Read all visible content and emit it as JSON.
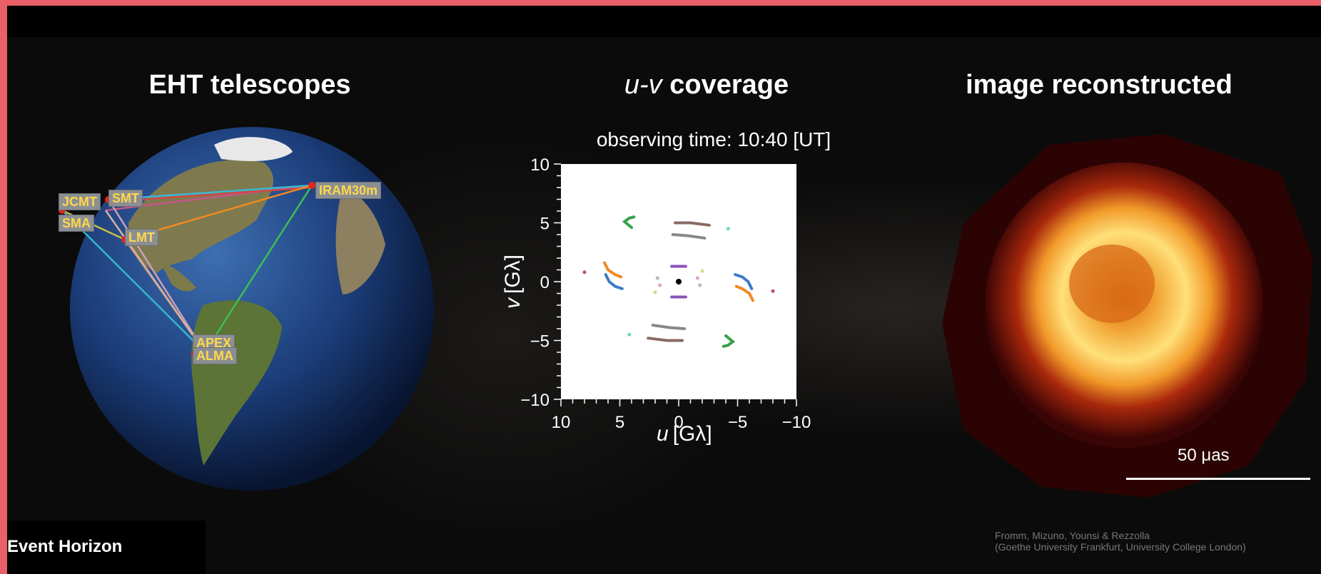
{
  "panels": {
    "telescopes_title": "EHT telescopes",
    "uv_title_italic": "u-v",
    "uv_title_rest": " coverage",
    "image_title": "image reconstructed"
  },
  "stations": [
    "JCMT",
    "SMT",
    "SMA",
    "LMT",
    "IRAM30m",
    "APEX",
    "ALMA"
  ],
  "uv_plot": {
    "caption": "observing time: 10:40 [UT]",
    "xlabel_var": "u",
    "xlabel_unit": "[Gλ]",
    "ylabel_var": "v",
    "ylabel_unit": "[Gλ]",
    "xlim": [
      10,
      -10
    ],
    "ylim": [
      -10,
      10
    ],
    "x_tick_labels": [
      "10",
      "5",
      "0",
      "−5",
      "−10"
    ],
    "y_tick_labels": [
      "10",
      "5",
      "0",
      "−5",
      "−10"
    ]
  },
  "scale": {
    "label": "50 μas"
  },
  "credit": {
    "line1": "Fromm, Mizuno, Younsi & Rezzolla",
    "line2": "(Goethe University Frankfurt, University College London)"
  },
  "watermark": "Event Horizon Telescope",
  "colors": {
    "frame_border": "#ea5f68",
    "station_label_text": "#ffd84a",
    "station_dot": "#e5251c"
  }
}
